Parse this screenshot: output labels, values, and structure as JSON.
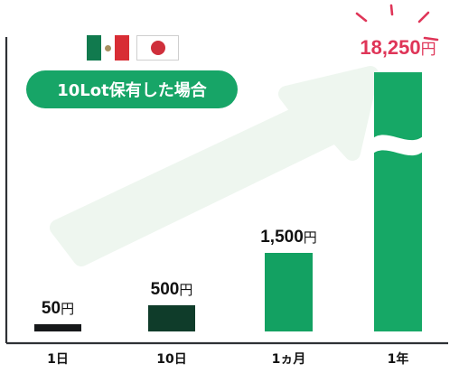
{
  "badge": {
    "label": "10Lot保有した場合"
  },
  "flags": {
    "left": "mexico-flag",
    "right": "japan-flag"
  },
  "colors": {
    "axis": "#2e3135",
    "pill": "#17a567",
    "arrow": "#eef6ef",
    "bar_1": "#16181a",
    "bar_2": "#0f3c2a",
    "bar_3": "#13a162",
    "bar_4": "#16a866",
    "value_red": "#df3558",
    "mx_green": "#117a4e",
    "mx_white": "#ffffff",
    "mx_red": "#d82d35",
    "jp_red": "#cf2f3b",
    "sparkle": "#df3558"
  },
  "chart_data": {
    "type": "bar",
    "title": "",
    "xlabel": "",
    "ylabel": "",
    "categories": [
      "1日",
      "10日",
      "1ヵ月",
      "1年"
    ],
    "values": [
      50,
      500,
      1500,
      18250
    ],
    "value_labels": [
      "50",
      "500",
      "1,500",
      "18,250"
    ],
    "unit": "円",
    "axis_break": true,
    "grid": false,
    "legend": "none"
  }
}
